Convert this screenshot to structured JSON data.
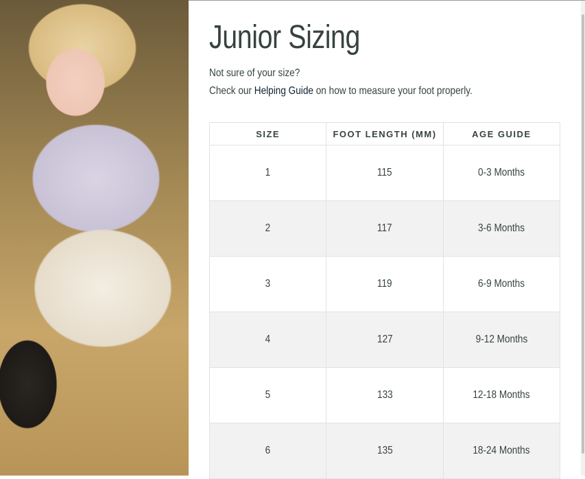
{
  "title": "Junior Sizing",
  "intro": {
    "line1": "Not sure of your size?",
    "line2_prefix": "Check our ",
    "link": "Helping Guide",
    "line2_suffix": " on how to measure your foot properly."
  },
  "table": {
    "headers": [
      "SIZE",
      "FOOT LENGTH (MM)",
      "AGE GUIDE"
    ],
    "rows": [
      [
        "1",
        "115",
        "0-3 Months"
      ],
      [
        "2",
        "117",
        "3-6 Months"
      ],
      [
        "3",
        "119",
        "6-9 Months"
      ],
      [
        "4",
        "127",
        "9-12 Months"
      ],
      [
        "5",
        "133",
        "12-18 Months"
      ],
      [
        "6",
        "135",
        "18-24 Months"
      ]
    ]
  },
  "colors": {
    "text": "#36433d",
    "link": "#0d1f33",
    "stripe": "#f2f2f2"
  }
}
